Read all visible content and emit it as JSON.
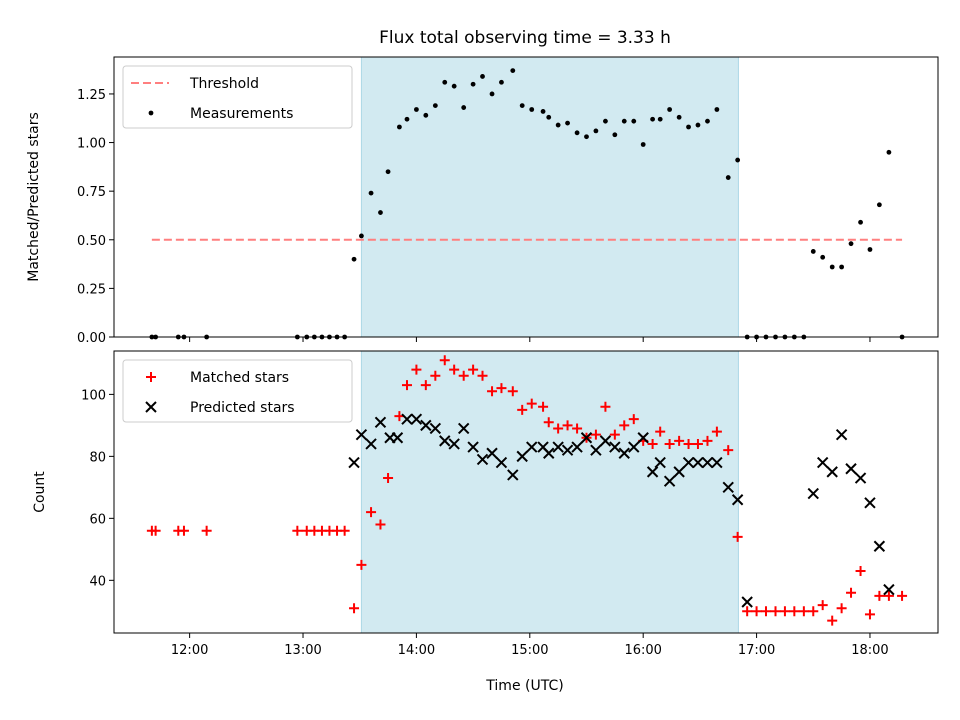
{
  "chart_data": {
    "type": "scatter",
    "title": "Flux total observing time = 3.33 h",
    "xlabel": "Time (UTC)",
    "x_ticks": [
      "12:00",
      "13:00",
      "14:00",
      "15:00",
      "16:00",
      "17:00",
      "18:00"
    ],
    "x_tick_hours": [
      12,
      13,
      14,
      15,
      16,
      17,
      18
    ],
    "xlim_hours": [
      11.333,
      18.6
    ],
    "shaded_interval_hours": [
      13.515,
      16.84
    ],
    "shade_color": "#add8e6",
    "panels": [
      {
        "ylabel": "Matched/Predicted stars",
        "ylim": [
          0,
          1.44
        ],
        "y_ticks": [
          "0.00",
          "0.25",
          "0.50",
          "0.75",
          "1.00",
          "1.25"
        ],
        "y_tick_values": [
          0,
          0.25,
          0.5,
          0.75,
          1.0,
          1.25
        ],
        "legend": [
          "Threshold",
          "Measurements"
        ],
        "threshold": {
          "name": "Threshold",
          "y": 0.5,
          "x_range_hours": [
            11.667,
            18.283
          ],
          "color": "#ff7f7f"
        },
        "series": [
          {
            "name": "Measurements",
            "marker": "dot",
            "color": "#000000",
            "x_hours": [
              11.667,
              11.7,
              11.9,
              11.95,
              12.15,
              12.95,
              13.033,
              13.1,
              13.167,
              13.233,
              13.3,
              13.367,
              13.45,
              13.515,
              13.6,
              13.683,
              13.75,
              13.85,
              13.917,
              14.0,
              14.083,
              14.167,
              14.25,
              14.333,
              14.417,
              14.5,
              14.583,
              14.667,
              14.75,
              14.85,
              14.933,
              15.017,
              15.117,
              15.167,
              15.25,
              15.333,
              15.417,
              15.5,
              15.583,
              15.667,
              15.75,
              15.833,
              15.917,
              16.0,
              16.083,
              16.15,
              16.233,
              16.317,
              16.4,
              16.483,
              16.567,
              16.65,
              16.75,
              16.833,
              16.917,
              17.0,
              17.083,
              17.167,
              17.25,
              17.333,
              17.417,
              17.5,
              17.583,
              17.667,
              17.75,
              17.833,
              17.917,
              18.0,
              18.083,
              18.167,
              18.283
            ],
            "y": [
              0,
              0,
              0,
              0,
              0,
              0,
              0,
              0,
              0,
              0,
              0,
              0,
              0.4,
              0.52,
              0.74,
              0.64,
              0.85,
              1.08,
              1.12,
              1.17,
              1.14,
              1.19,
              1.31,
              1.29,
              1.18,
              1.3,
              1.34,
              1.25,
              1.31,
              1.37,
              1.19,
              1.17,
              1.16,
              1.13,
              1.09,
              1.1,
              1.05,
              1.03,
              1.06,
              1.11,
              1.04,
              1.11,
              1.11,
              0.99,
              1.12,
              1.12,
              1.17,
              1.13,
              1.08,
              1.09,
              1.11,
              1.17,
              0.82,
              0.91,
              0,
              0,
              0,
              0,
              0,
              0,
              0,
              0.44,
              0.41,
              0.36,
              0.36,
              0.48,
              0.59,
              0.45,
              0.68,
              0.95,
              0
            ]
          }
        ]
      },
      {
        "ylabel": "Count",
        "ylim": [
          23,
          114
        ],
        "y_ticks": [
          "40",
          "60",
          "80",
          "100"
        ],
        "y_tick_values": [
          40,
          60,
          80,
          100
        ],
        "legend": [
          "Matched stars",
          "Predicted stars"
        ],
        "series": [
          {
            "name": "Matched stars",
            "marker": "plus",
            "color": "#ff0000",
            "x_hours": [
              11.667,
              11.7,
              11.9,
              11.95,
              12.15,
              12.95,
              13.033,
              13.1,
              13.167,
              13.233,
              13.3,
              13.367,
              13.45,
              13.515,
              13.6,
              13.683,
              13.75,
              13.85,
              13.917,
              14.0,
              14.083,
              14.167,
              14.25,
              14.333,
              14.417,
              14.5,
              14.583,
              14.667,
              14.75,
              14.85,
              14.933,
              15.017,
              15.117,
              15.167,
              15.25,
              15.333,
              15.417,
              15.5,
              15.583,
              15.667,
              15.75,
              15.833,
              15.917,
              16.0,
              16.083,
              16.15,
              16.233,
              16.317,
              16.4,
              16.483,
              16.567,
              16.65,
              16.75,
              16.833,
              16.917,
              17.0,
              17.083,
              17.167,
              17.25,
              17.333,
              17.417,
              17.5,
              17.583,
              17.667,
              17.75,
              17.833,
              17.917,
              18.0,
              18.083,
              18.167,
              18.283
            ],
            "y": [
              56,
              56,
              56,
              56,
              56,
              56,
              56,
              56,
              56,
              56,
              56,
              56,
              31,
              45,
              62,
              58,
              73,
              93,
              103,
              108,
              103,
              106,
              111,
              108,
              106,
              108,
              106,
              101,
              102,
              101,
              95,
              97,
              96,
              91,
              89,
              90,
              89,
              86,
              87,
              96,
              87,
              90,
              92,
              85,
              84,
              88,
              84,
              85,
              84,
              84,
              85,
              88,
              82,
              54,
              30,
              30,
              30,
              30,
              30,
              30,
              30,
              30,
              32,
              27,
              31,
              36,
              43,
              29,
              35,
              35,
              35
            ]
          },
          {
            "name": "Predicted stars",
            "marker": "x",
            "color": "#000000",
            "x_hours": [
              13.45,
              13.515,
              13.6,
              13.683,
              13.767,
              13.833,
              13.917,
              14.0,
              14.083,
              14.167,
              14.25,
              14.333,
              14.417,
              14.5,
              14.583,
              14.667,
              14.75,
              14.85,
              14.933,
              15.017,
              15.117,
              15.167,
              15.25,
              15.333,
              15.417,
              15.5,
              15.583,
              15.667,
              15.75,
              15.833,
              15.917,
              16.0,
              16.083,
              16.15,
              16.233,
              16.317,
              16.4,
              16.483,
              16.567,
              16.65,
              16.75,
              16.833,
              16.917,
              17.5,
              17.583,
              17.667,
              17.75,
              17.833,
              17.917,
              18.0,
              18.083,
              18.167
            ],
            "y": [
              78,
              87,
              84,
              91,
              86,
              86,
              92,
              92,
              90,
              89,
              85,
              84,
              89,
              83,
              79,
              81,
              78,
              74,
              80,
              83,
              83,
              81,
              83,
              82,
              83,
              86,
              82,
              85,
              83,
              81,
              83,
              86,
              75,
              78,
              72,
              75,
              78,
              78,
              78,
              78,
              70,
              66,
              33,
              68,
              78,
              75,
              87,
              76,
              73,
              65,
              51,
              37
            ]
          }
        ]
      }
    ]
  }
}
